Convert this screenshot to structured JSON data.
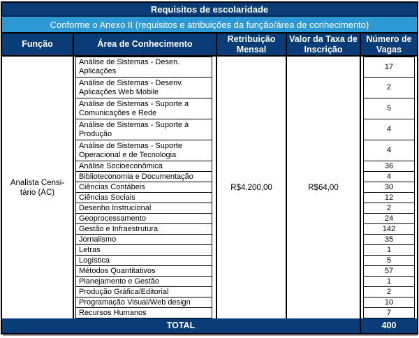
{
  "table": {
    "title": "Requisitos de escolaridade",
    "subtitle": "Conforme o Anexo II (requisitos e atribuições da função/área de conhecimento)",
    "columns": {
      "funcao": "Função",
      "area": "Área de Conhecimento",
      "retribuicao": "Retribuição Mensal",
      "taxa": "Valor da Taxa de Inscrição",
      "vagas": "Número de Vagas"
    },
    "funcao_value": "Analista Censi-\ntário (AC)",
    "retribuicao_value": "R$4.200,00",
    "taxa_value": "R$64,00",
    "rows": [
      {
        "area": "Análise de Sistemas - Desen. Aplicações",
        "vagas": "17",
        "lines": 2
      },
      {
        "area": "Análise de Sistemas - Desenv. Aplicações Web Mobile",
        "vagas": "2",
        "lines": 2
      },
      {
        "area": "Análise de Sistemas - Suporte a Comunicações e Rede",
        "vagas": "5",
        "lines": 2
      },
      {
        "area": "Análise de Sistemas - Suporte à Produção",
        "vagas": "4",
        "lines": 2
      },
      {
        "area": "Análise de Sistemas - Suporte Operacional e de Tecnologia",
        "vagas": "4",
        "lines": 2
      },
      {
        "area": "Análise Socioeconômica",
        "vagas": "36",
        "lines": 1
      },
      {
        "area": "Biblioteconomia e Documentação",
        "vagas": "4",
        "lines": 1
      },
      {
        "area": "Ciências Contábeis",
        "vagas": "30",
        "lines": 1
      },
      {
        "area": "Ciências Sociais",
        "vagas": "12",
        "lines": 1
      },
      {
        "area": "Desenho Instrucional",
        "vagas": "2",
        "lines": 1
      },
      {
        "area": "Geoprocessamento",
        "vagas": "24",
        "lines": 1
      },
      {
        "area": "Gestão e Infraestrutura",
        "vagas": "142",
        "lines": 1
      },
      {
        "area": "Jornalismo",
        "vagas": "35",
        "lines": 1
      },
      {
        "area": "Letras",
        "vagas": "1",
        "lines": 1
      },
      {
        "area": "Logística",
        "vagas": "5",
        "lines": 1
      },
      {
        "area": "Métodos Quantitativos",
        "vagas": "57",
        "lines": 1
      },
      {
        "area": "Planejamento e Gestão",
        "vagas": "1",
        "lines": 1
      },
      {
        "area": "Produção Gráfica/Editorial",
        "vagas": "2",
        "lines": 1
      },
      {
        "area": "Programação Visual/Web design",
        "vagas": "10",
        "lines": 1
      },
      {
        "area": "Recursos Humanos",
        "vagas": "7",
        "lines": 1
      }
    ],
    "total_label": "TOTAL",
    "total_vagas": "400",
    "colors": {
      "navy": "#0a3c78",
      "light_blue": "#2e9ad5",
      "border": "#000000"
    }
  }
}
